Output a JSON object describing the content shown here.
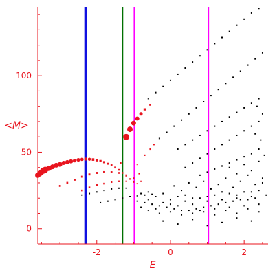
{
  "chart_data": {
    "type": "scatter",
    "title": "",
    "xlabel": "E",
    "ylabel": "<M>",
    "xlim": [
      -3.6,
      2.65
    ],
    "ylim": [
      -10,
      145
    ],
    "x_ticks": [
      {
        "value": -2,
        "label": "-2"
      },
      {
        "value": 0,
        "label": "0"
      },
      {
        "value": 2,
        "label": "2"
      }
    ],
    "y_ticks": [
      {
        "value": 0,
        "label": "0"
      },
      {
        "value": 50,
        "label": "50"
      },
      {
        "value": 100,
        "label": "100"
      }
    ],
    "colors": {
      "axis": "#e8141e",
      "highlight": "#e8141e",
      "points": "#000000"
    },
    "vertical_lines": [
      {
        "x": -2.3,
        "color": "#1010e0"
      },
      {
        "x": -1.3,
        "color": "#007000"
      },
      {
        "x": -0.98,
        "color": "#ff00ff"
      },
      {
        "x": 1.03,
        "color": "#ff00ff"
      }
    ],
    "series": [
      {
        "color": "#e8141e",
        "points": [
          [
            -3.6,
            35,
            4
          ],
          [
            -3.55,
            36,
            4
          ],
          [
            -3.5,
            37,
            4
          ],
          [
            -3.45,
            38,
            4.5
          ],
          [
            -3.4,
            38.5,
            4.5
          ],
          [
            -3.3,
            39.5,
            4
          ],
          [
            -3.2,
            40.5,
            3.5
          ],
          [
            -3.1,
            41.5,
            3.5
          ],
          [
            -3.0,
            42,
            3.5
          ],
          [
            -2.9,
            43,
            3
          ],
          [
            -2.8,
            43.5,
            3
          ],
          [
            -2.7,
            44,
            3
          ],
          [
            -2.6,
            44.5,
            2.6
          ],
          [
            -2.5,
            45,
            2.6
          ],
          [
            -2.4,
            45.3,
            2.4
          ],
          [
            -2.3,
            45.5,
            2.2
          ],
          [
            -2.2,
            45.4,
            2.2
          ],
          [
            -2.1,
            45.2,
            2
          ],
          [
            -2.0,
            44.8,
            2
          ],
          [
            -1.9,
            44.2,
            1.8
          ],
          [
            -1.8,
            43.5,
            1.7
          ],
          [
            -1.7,
            42.5,
            1.6
          ],
          [
            -1.6,
            41.5,
            1.5
          ],
          [
            -1.5,
            40,
            1.5
          ],
          [
            -1.4,
            38.5,
            1.4
          ],
          [
            -1.3,
            36.5,
            1.3
          ],
          [
            -1.2,
            34.5,
            1.2
          ],
          [
            -1.1,
            32.5,
            1.2
          ],
          [
            -3.0,
            28,
            1.5
          ],
          [
            -2.8,
            30,
            1.5
          ],
          [
            -2.6,
            32,
            1.5
          ],
          [
            -2.4,
            34,
            1.6
          ],
          [
            -2.2,
            35.5,
            1.6
          ],
          [
            -2.0,
            36.5,
            1.6
          ],
          [
            -1.8,
            37,
            1.6
          ],
          [
            -1.6,
            37,
            1.5
          ],
          [
            -1.4,
            36.5,
            1.4
          ],
          [
            -1.2,
            35,
            1.3
          ],
          [
            -1.0,
            33,
            1.2
          ],
          [
            -0.8,
            31,
            1.1
          ],
          [
            -2.4,
            25,
            1.4
          ],
          [
            -2.2,
            27,
            1.4
          ],
          [
            -2.0,
            28.5,
            1.4
          ],
          [
            -1.8,
            29.5,
            1.4
          ],
          [
            -1.6,
            30.5,
            1.3
          ],
          [
            -1.4,
            31,
            1.3
          ],
          [
            -1.2,
            31,
            1.2
          ],
          [
            -1.0,
            30.5,
            1.1
          ],
          [
            -0.9,
            29.5,
            1.1
          ],
          [
            -1.2,
            60,
            4.5
          ],
          [
            -1.1,
            65,
            4
          ],
          [
            -1.0,
            69,
            3.5
          ],
          [
            -0.9,
            72,
            3
          ],
          [
            -0.8,
            75,
            2.5
          ],
          [
            -0.7,
            78,
            1.8
          ],
          [
            -0.55,
            81,
            1.5
          ],
          [
            -0.7,
            48,
            1.2
          ],
          [
            -0.55,
            52,
            1.2
          ],
          [
            -0.45,
            55,
            1.2
          ],
          [
            -0.9,
            42,
            1.1
          ],
          [
            -0.85,
            36,
            1.1
          ],
          [
            -1.35,
            43,
            1.2
          ]
        ]
      },
      {
        "color": "#000000",
        "points": [
          [
            -0.6,
            85
          ],
          [
            -0.4,
            89
          ],
          [
            -0.2,
            93
          ],
          [
            0.0,
            97
          ],
          [
            0.2,
            101
          ],
          [
            0.4,
            105
          ],
          [
            0.6,
            109
          ],
          [
            0.8,
            113
          ],
          [
            1.0,
            117
          ],
          [
            1.2,
            121
          ],
          [
            1.4,
            125
          ],
          [
            1.6,
            129
          ],
          [
            1.8,
            133
          ],
          [
            2.0,
            137
          ],
          [
            2.2,
            141
          ],
          [
            2.4,
            144
          ],
          [
            -0.3,
            59
          ],
          [
            -0.1,
            63
          ],
          [
            0.1,
            67
          ],
          [
            0.3,
            71
          ],
          [
            0.5,
            75
          ],
          [
            0.7,
            79
          ],
          [
            0.9,
            83
          ],
          [
            1.1,
            87
          ],
          [
            1.3,
            91
          ],
          [
            1.5,
            95
          ],
          [
            1.7,
            99
          ],
          [
            1.9,
            103
          ],
          [
            2.1,
            107
          ],
          [
            2.3,
            111
          ],
          [
            2.5,
            115
          ],
          [
            0.2,
            52
          ],
          [
            0.4,
            55
          ],
          [
            0.6,
            58
          ],
          [
            0.8,
            61
          ],
          [
            1.0,
            64
          ],
          [
            1.2,
            67
          ],
          [
            1.4,
            70
          ],
          [
            1.6,
            73
          ],
          [
            1.8,
            76
          ],
          [
            2.0,
            79
          ],
          [
            2.2,
            82
          ],
          [
            2.4,
            85
          ],
          [
            0.4,
            40
          ],
          [
            0.6,
            43
          ],
          [
            0.8,
            46
          ],
          [
            1.0,
            49
          ],
          [
            1.2,
            52
          ],
          [
            1.4,
            55
          ],
          [
            1.6,
            58
          ],
          [
            1.8,
            61
          ],
          [
            2.0,
            64
          ],
          [
            2.2,
            67
          ],
          [
            2.4,
            70
          ],
          [
            0.8,
            35
          ],
          [
            1.0,
            37
          ],
          [
            1.2,
            39
          ],
          [
            1.4,
            41
          ],
          [
            1.6,
            43
          ],
          [
            1.8,
            45
          ],
          [
            2.0,
            47
          ],
          [
            2.2,
            49
          ],
          [
            2.4,
            52
          ],
          [
            -2.4,
            22
          ],
          [
            -2.2,
            23
          ],
          [
            -2.0,
            24
          ],
          [
            -1.8,
            25
          ],
          [
            -1.6,
            26
          ],
          [
            -1.4,
            26.5
          ],
          [
            -1.2,
            26.5
          ],
          [
            -1.9,
            17
          ],
          [
            -1.7,
            18
          ],
          [
            -1.5,
            19
          ],
          [
            -1.3,
            20
          ],
          [
            -1.1,
            21
          ],
          [
            -0.9,
            21.5
          ],
          [
            -0.7,
            22
          ],
          [
            -0.5,
            22.5
          ],
          [
            -0.9,
            18
          ],
          [
            -0.7,
            17
          ],
          [
            -0.5,
            16
          ],
          [
            -0.3,
            15
          ],
          [
            -0.1,
            14
          ],
          [
            0.1,
            13
          ],
          [
            0.3,
            12
          ],
          [
            0.5,
            12
          ],
          [
            0.7,
            13
          ],
          [
            0.9,
            14
          ],
          [
            1.1,
            15
          ],
          [
            1.3,
            16
          ],
          [
            1.5,
            17
          ],
          [
            1.7,
            18
          ],
          [
            1.9,
            19
          ],
          [
            2.1,
            19
          ],
          [
            2.3,
            20
          ],
          [
            -0.8,
            23
          ],
          [
            -0.6,
            19
          ],
          [
            -0.4,
            21
          ],
          [
            -0.2,
            17
          ],
          [
            0.0,
            19
          ],
          [
            0.2,
            21
          ],
          [
            0.4,
            18
          ],
          [
            0.6,
            16
          ],
          [
            0.8,
            20
          ],
          [
            1.0,
            18
          ],
          [
            1.2,
            22
          ],
          [
            1.4,
            19
          ],
          [
            1.6,
            23
          ],
          [
            1.8,
            20
          ],
          [
            2.0,
            24
          ],
          [
            2.2,
            21
          ],
          [
            2.4,
            25
          ],
          [
            -0.6,
            12
          ],
          [
            -0.3,
            10
          ],
          [
            0.0,
            11
          ],
          [
            0.3,
            9
          ],
          [
            0.6,
            10
          ],
          [
            0.9,
            11
          ],
          [
            1.2,
            9
          ],
          [
            1.5,
            12
          ],
          [
            1.8,
            10
          ],
          [
            2.1,
            13
          ],
          [
            2.4,
            11
          ],
          [
            0.1,
            28
          ],
          [
            0.3,
            25
          ],
          [
            0.5,
            30
          ],
          [
            0.7,
            27
          ],
          [
            0.9,
            31
          ],
          [
            1.1,
            26
          ],
          [
            1.3,
            29
          ],
          [
            1.5,
            33
          ],
          [
            1.7,
            27
          ],
          [
            1.9,
            31
          ],
          [
            2.1,
            35
          ],
          [
            2.3,
            29
          ],
          [
            2.5,
            33
          ],
          [
            -0.2,
            5
          ],
          [
            0.2,
            3
          ],
          [
            0.6,
            6
          ],
          [
            1.0,
            2
          ],
          [
            1.4,
            4
          ],
          [
            1.8,
            7
          ],
          [
            2.2,
            5
          ],
          [
            1.6,
            40
          ],
          [
            1.8,
            36
          ],
          [
            2.0,
            42
          ],
          [
            2.2,
            38
          ],
          [
            2.4,
            44
          ],
          [
            2.55,
            48
          ],
          [
            2.5,
            30
          ],
          [
            2.6,
            22
          ],
          [
            -0.8,
            14
          ],
          [
            -0.6,
            24
          ],
          [
            -0.4,
            13
          ],
          [
            -0.2,
            23
          ],
          [
            0.0,
            16
          ],
          [
            0.2,
            15
          ],
          [
            0.4,
            22
          ],
          [
            0.6,
            20
          ],
          [
            0.8,
            12
          ],
          [
            1.0,
            21
          ],
          [
            1.2,
            13
          ],
          [
            1.4,
            24
          ],
          [
            1.6,
            14
          ],
          [
            1.8,
            22
          ],
          [
            2.0,
            15
          ],
          [
            2.2,
            24
          ],
          [
            2.4,
            16
          ],
          [
            2.45,
            58
          ],
          [
            2.3,
            62
          ],
          [
            2.5,
            75
          ],
          [
            2.35,
            80
          ]
        ]
      }
    ]
  }
}
